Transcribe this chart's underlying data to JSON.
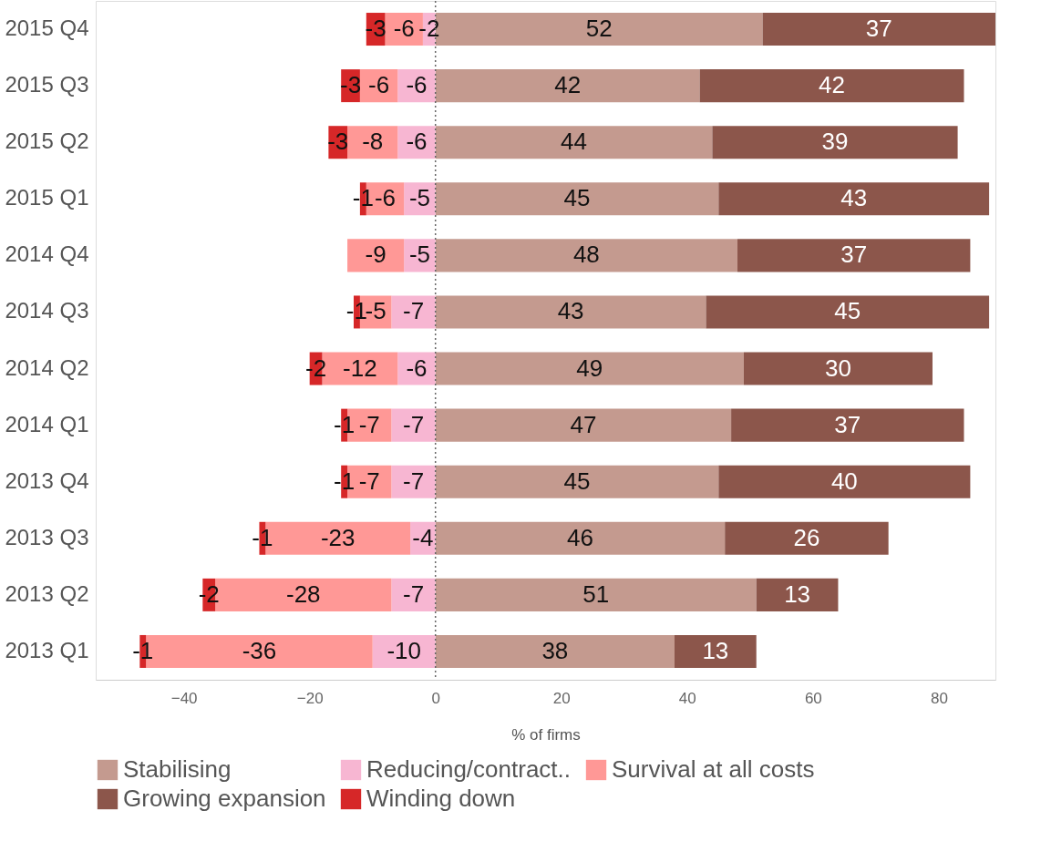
{
  "chart_data": {
    "type": "bar",
    "orientation": "horizontal",
    "stacked": true,
    "data_labels": true,
    "categories": [
      "2015 Q4",
      "2015 Q3",
      "2015 Q2",
      "2015 Q1",
      "2014 Q4",
      "2014 Q3",
      "2014 Q2",
      "2014 Q1",
      "2013 Q4",
      "2013 Q3",
      "2013 Q2",
      "2013 Q1"
    ],
    "series": [
      {
        "name": "Stabilising",
        "color": "#c49a8f",
        "values": [
          52,
          42,
          44,
          45,
          48,
          43,
          49,
          47,
          45,
          46,
          51,
          38
        ]
      },
      {
        "name": "Reducing/contract..",
        "color": "#f7b6d2",
        "values": [
          -2,
          -6,
          -6,
          -5,
          -5,
          -7,
          -6,
          -7,
          -7,
          -4,
          -7,
          -10
        ]
      },
      {
        "name": "Survival at all costs",
        "color": "#ff9896",
        "values": [
          -6,
          -6,
          -8,
          -6,
          -9,
          -5,
          -12,
          -7,
          -7,
          -23,
          -28,
          -36
        ]
      },
      {
        "name": "Growing expansion",
        "color": "#8c564b",
        "values": [
          37,
          42,
          39,
          43,
          37,
          45,
          30,
          37,
          40,
          26,
          13,
          13
        ]
      },
      {
        "name": "Winding down",
        "color": "#d62728",
        "values": [
          -3,
          -3,
          -3,
          -1,
          null,
          -1,
          -2,
          -1,
          -1,
          -1,
          -2,
          -1
        ]
      }
    ],
    "xlabel": "% of firms",
    "xlim": [
      -54,
      89
    ],
    "xticks": [
      -40,
      -20,
      0,
      20,
      40,
      60,
      80
    ],
    "ref_lines": [
      {
        "axis": "x",
        "value": 0,
        "line_style": "dotted",
        "color": "#666666"
      }
    ],
    "grid": false,
    "legend": "bottom"
  }
}
